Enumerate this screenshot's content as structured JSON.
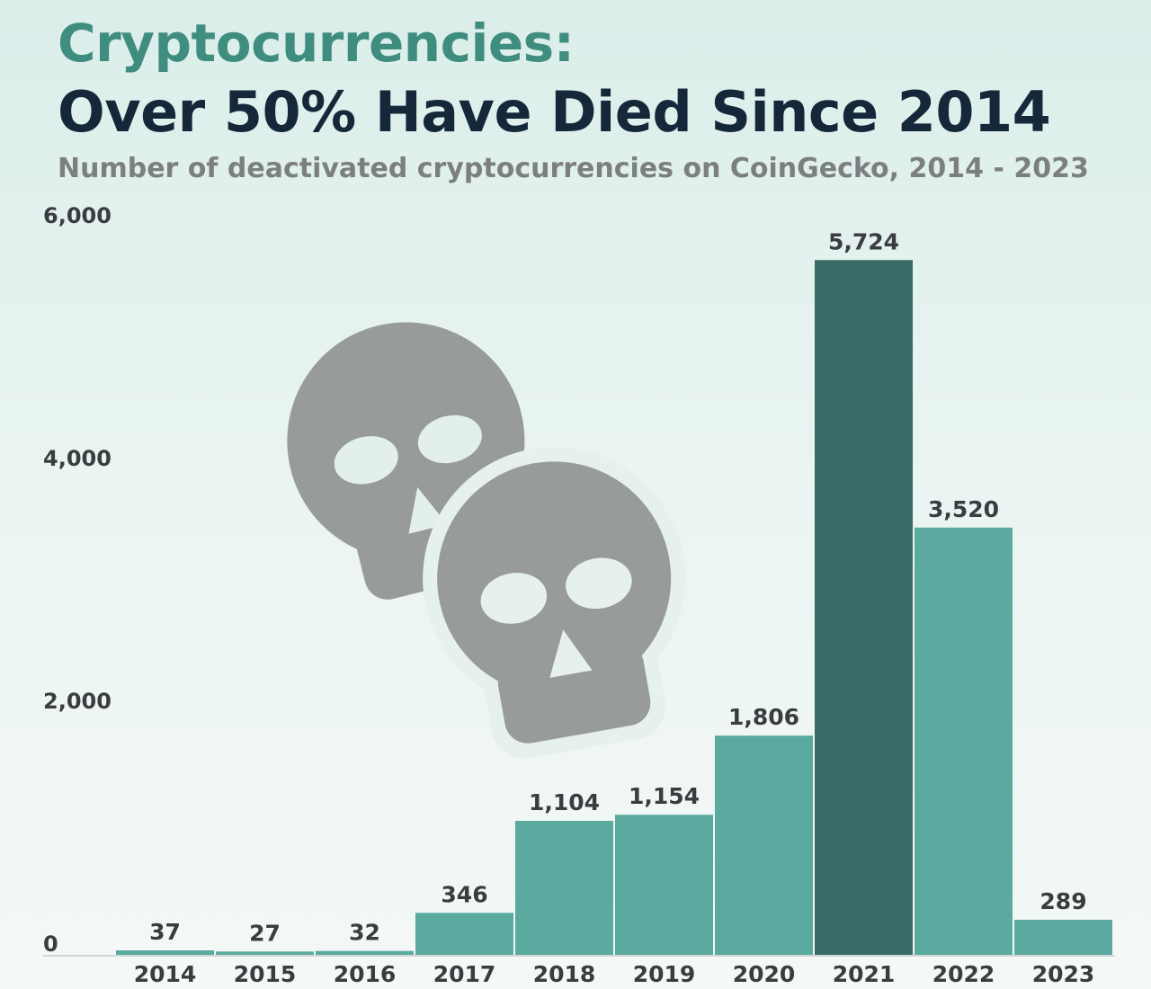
{
  "header": {
    "title_line1": "Cryptocurrencies:",
    "title_line2": "Over 50% Have Died Since 2014",
    "subtitle": "Number of deactivated cryptocurrencies on CoinGecko, 2014 - 2023"
  },
  "chart_data": {
    "type": "bar",
    "title": "Cryptocurrencies: Over 50% Have Died Since 2014",
    "subtitle": "Number of deactivated cryptocurrencies on CoinGecko, 2014 - 2023",
    "xlabel": "",
    "ylabel": "",
    "ylim": [
      0,
      6000
    ],
    "yticks": [
      0,
      2000,
      4000,
      6000
    ],
    "ytick_labels": [
      "0",
      "2,000",
      "4,000",
      "6,000"
    ],
    "grid": false,
    "legend": "none",
    "categories": [
      "2014",
      "2015",
      "2016",
      "2017",
      "2018",
      "2019",
      "2020",
      "2021",
      "2022",
      "2023"
    ],
    "values": [
      37,
      27,
      32,
      346,
      1104,
      1154,
      1806,
      5724,
      3520,
      289
    ],
    "value_labels": [
      "37",
      "27",
      "32",
      "346",
      "1,104",
      "1,154",
      "1,806",
      "5,724",
      "3,520",
      "289"
    ],
    "highlight_category": "2021",
    "colors": {
      "bar": "#5aaaa0",
      "highlight": "#386b65",
      "label": "#3a3d3f",
      "axis_label": "#3a3d3f",
      "baseline": "#cfd8d6"
    }
  },
  "decoration": {
    "icon": "skull-icon",
    "color": "#979c9a"
  }
}
